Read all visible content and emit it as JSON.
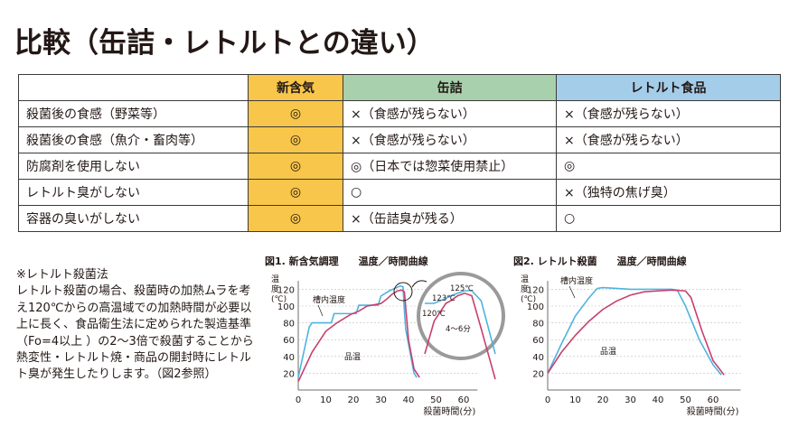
{
  "title": "比較（缶詰・レトルトとの違い）",
  "table": {
    "headers": [
      "",
      "新含気",
      "缶詰",
      "レトルト食品"
    ],
    "rows": [
      [
        "殺菌後の食感（野菜等）",
        "◎",
        "×（食感が残らない）",
        "×（食感が残らない）"
      ],
      [
        "殺菌後の食感（魚介・畜肉等）",
        "◎",
        "×（食感が残らない）",
        "×（食感が残らない）"
      ],
      [
        "防腐剤を使用しない",
        "◎",
        "◎（日本では惣菜使用禁止）",
        "◎"
      ],
      [
        "レトルト臭がしない",
        "◎",
        "○",
        "×（独特の焦げ臭）"
      ],
      [
        "容器の臭いがしない",
        "◎",
        "×（缶詰臭が残る）",
        "○"
      ]
    ]
  },
  "note": {
    "heading": "※レトルト殺菌法",
    "body": "レトルト殺菌の場合、殺菌時の加熱ムラを考え120℃からの高温域での加熱時間が必要以上に長く、食品衛生法に定められた製造基準（Fo=4以上 ）の2～3倍で殺菌することから熱変性・レトルト焼・商品の開封時にレトルト臭が発生したりします。（図2参照）"
  },
  "chart_data": [
    {
      "type": "line",
      "title": "図1. 新含気調理　　温度／時間曲線",
      "ylabel": "温度（℃）",
      "xlabel": "殺菌時間(分)",
      "xlim": [
        0,
        65
      ],
      "ylim": [
        0,
        130
      ],
      "xticks": [
        0,
        10,
        20,
        30,
        40,
        50,
        60
      ],
      "yticks": [
        20,
        40,
        60,
        80,
        100,
        120
      ],
      "series": [
        {
          "name": "槽内温度",
          "color": "#4fb3e0",
          "x": [
            0,
            4,
            5,
            12,
            13,
            21,
            22,
            29,
            30,
            33,
            35,
            37,
            38,
            38.5,
            39,
            42,
            43
          ],
          "y": [
            15,
            75,
            80,
            80,
            91,
            91,
            101,
            101,
            112,
            118,
            121,
            124,
            123,
            95,
            72,
            20,
            15
          ]
        },
        {
          "name": "品温",
          "color": "#c8406e",
          "x": [
            0,
            5,
            10,
            14,
            16,
            19,
            22,
            25,
            30,
            32,
            34,
            36,
            37.5,
            38.5,
            40,
            42,
            44
          ],
          "y": [
            10,
            45,
            70,
            80,
            84,
            90,
            94,
            100,
            103,
            108,
            114,
            118,
            119,
            117,
            60,
            25,
            15
          ]
        }
      ],
      "inset": {
        "labels": [
          "125℃",
          "123℃",
          "120℃",
          "4～6分"
        ],
        "x": [
          0,
          8,
          18,
          22,
          28,
          34,
          40,
          48,
          60
        ],
        "series": [
          {
            "name": "槽内温度",
            "y": [
              120,
              120,
              122,
              123,
              124,
              125,
              125,
              121,
              100
            ]
          },
          {
            "name": "品温",
            "y": [
              100,
              113,
              120,
              121,
              123,
              124,
              123,
              110,
              90
            ]
          }
        ]
      }
    },
    {
      "type": "line",
      "title": "図2. レトルト殺菌　　温度／時間曲線",
      "ylabel": "温度（℃）",
      "xlabel": "殺菌時間(分)",
      "xlim": [
        0,
        70
      ],
      "ylim": [
        0,
        130
      ],
      "xticks": [
        0,
        10,
        20,
        30,
        40,
        50,
        60
      ],
      "yticks": [
        20,
        40,
        60,
        80,
        100,
        120
      ],
      "series": [
        {
          "name": "槽内温度",
          "color": "#4fb3e0",
          "x": [
            0,
            5,
            10,
            15,
            18,
            20,
            25,
            30,
            40,
            45,
            47,
            50,
            55,
            60,
            63
          ],
          "y": [
            20,
            55,
            88,
            110,
            121,
            122,
            121,
            120,
            120,
            120,
            119,
            100,
            60,
            30,
            18
          ]
        },
        {
          "name": "品温",
          "color": "#c8406e",
          "x": [
            0,
            5,
            10,
            15,
            20,
            25,
            30,
            35,
            40,
            45,
            50,
            52,
            56,
            60,
            64
          ],
          "y": [
            20,
            45,
            65,
            82,
            96,
            106,
            113,
            117,
            118,
            119,
            118,
            110,
            70,
            35,
            18
          ]
        }
      ]
    }
  ]
}
